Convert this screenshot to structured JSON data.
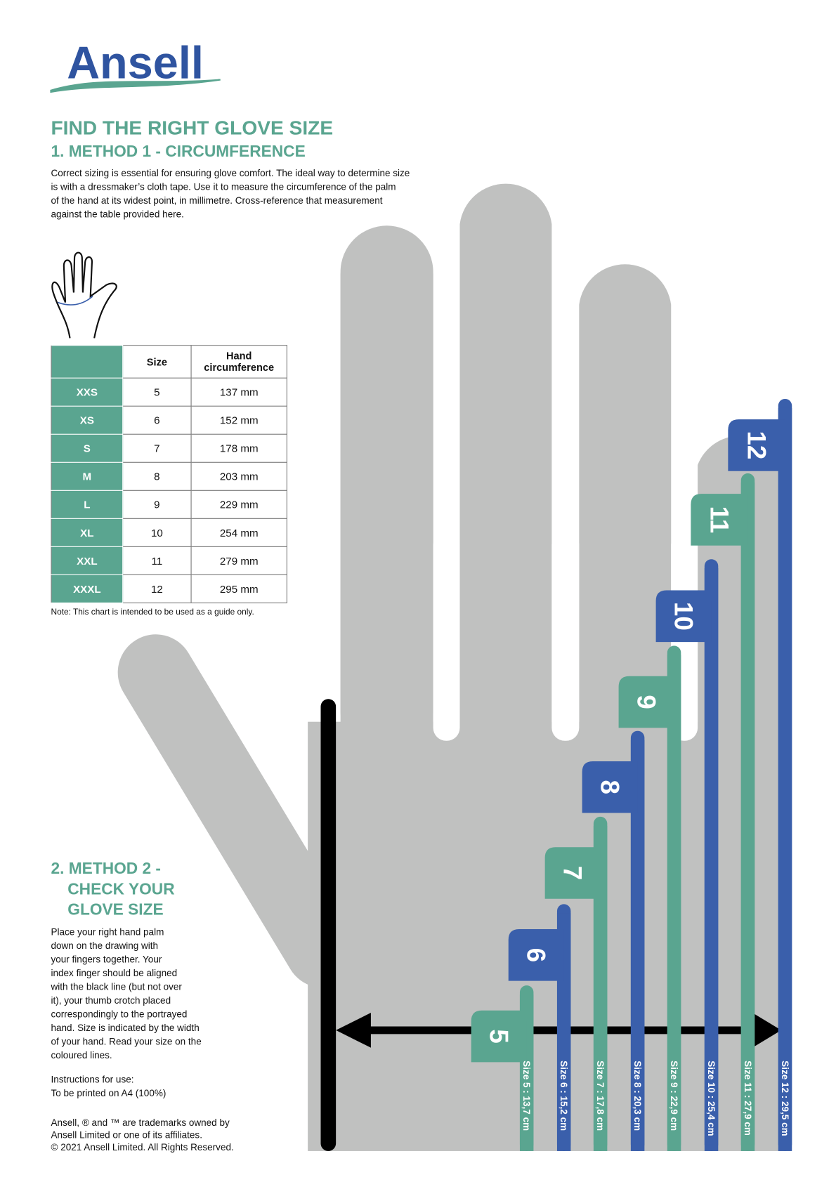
{
  "header": {
    "logo": "Ansell",
    "title": "FIND THE RIGHT GLOVE SIZE"
  },
  "method1": {
    "heading": "1. METHOD 1 - CIRCUMFERENCE",
    "text": [
      "Correct sizing is essential for ensuring glove comfort. The ideal way to determine size",
      "is with a dressmaker’s cloth tape. Use it to measure the circumference of the palm",
      "of the hand at its widest point, in millimetre. Cross-reference that measurement",
      "against the table provided here."
    ],
    "table": {
      "columns": [
        "Size",
        "Hand circumference"
      ],
      "rows": [
        [
          "XXS",
          "5",
          "137 mm"
        ],
        [
          "XS",
          "6",
          "152 mm"
        ],
        [
          "S",
          "7",
          "178 mm"
        ],
        [
          "M",
          "8",
          "203 mm"
        ],
        [
          "L",
          "9",
          "229 mm"
        ],
        [
          "XL",
          "10",
          "254 mm"
        ],
        [
          "XXL",
          "11",
          "279 mm"
        ],
        [
          "XXXL",
          "12",
          "295 mm"
        ]
      ]
    },
    "note": "Note: This chart is intended to be used as a guide only."
  },
  "method2": {
    "heading": [
      "2. METHOD 2 -",
      "CHECK YOUR",
      "GLOVE SIZE"
    ],
    "text": [
      "Place your right hand palm",
      "down on the drawing with",
      "your fingers together. Your",
      "index finger should be aligned",
      "with the black line (but not over",
      "it), your thumb crotch placed",
      "correspondingly to the portrayed",
      "hand. Size is indicated by the width",
      "of your hand. Read your size on the",
      "coloured lines."
    ],
    "instructions": [
      "Instructions for use:",
      "To be printed on A4 (100%)"
    ],
    "legal": [
      "Ansell, ® and ™ are trademarks owned by",
      "Ansell Limited or one of its affiliates.",
      "© 2021 Ansell Limited. All Rights Reserved."
    ]
  },
  "gauge": {
    "bars": [
      {
        "size": "5",
        "label": "Size 5 : 13,7 cm"
      },
      {
        "size": "6",
        "label": "Size 6 : 15,2 cm"
      },
      {
        "size": "7",
        "label": "Size 7 : 17,8 cm"
      },
      {
        "size": "8",
        "label": "Size 8 : 20,3 cm"
      },
      {
        "size": "9",
        "label": "Size 9 : 22,9 cm"
      },
      {
        "size": "10",
        "label": "Size 10 : 25,4 cm"
      },
      {
        "size": "11",
        "label": "Size 11 : 27,9 cm"
      },
      {
        "size": "12",
        "label": "Size 12 : 29,5 cm"
      }
    ]
  }
}
